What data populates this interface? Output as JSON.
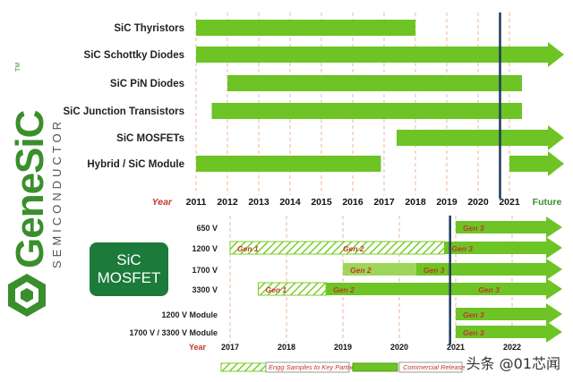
{
  "brand": {
    "name": "GeneSiC",
    "trademark": "TM",
    "tagline": "SEMICONDUCTOR"
  },
  "watermark": "头条 @01芯闻",
  "mosfet_box": {
    "line1": "SiC",
    "line2": "MOSFET"
  },
  "colors": {
    "bar": "#7ccc2a",
    "arrow": "#6dc424",
    "vline": "#1f3a5f",
    "year_red": "#c0392b",
    "grid": "#e8b89a"
  },
  "chart_data": [
    {
      "type": "gantt",
      "x_label": "Year",
      "x_ticks": [
        "2011",
        "2012",
        "2013",
        "2014",
        "2015",
        "2016",
        "2017",
        "2018",
        "2019",
        "2020",
        "2021",
        "Future"
      ],
      "marker_year": 2020.7,
      "series": [
        {
          "name": "SiC Thyristors",
          "start": 2011,
          "end": 2018,
          "arrow": false
        },
        {
          "name": "SiC Schottky Diodes",
          "start": 2011,
          "end": "Future",
          "arrow": true
        },
        {
          "name": "SiC PiN Diodes",
          "start": 2012,
          "end": 2021.4,
          "arrow": false
        },
        {
          "name": "SiC Junction Transistors",
          "start": 2011.5,
          "end": 2021.4,
          "arrow": false
        },
        {
          "name": "SiC MOSFETs",
          "start": 2017.4,
          "end": "Future",
          "arrow": true
        },
        {
          "name": "Hybrid / SiC Module",
          "start": 2011,
          "end": 2016.9,
          "arrow": false
        },
        {
          "name": "Hybrid / SiC Module",
          "start": 2021,
          "end": "Future",
          "arrow": true
        }
      ]
    },
    {
      "type": "gantt",
      "x_label": "Year",
      "x_ticks": [
        "2017",
        "2018",
        "2019",
        "2020",
        "2021",
        "2022"
      ],
      "marker_year": 2020.9,
      "legend": [
        {
          "label": "Engg Samples to Key Partners",
          "style": "hatched"
        },
        {
          "label": "Commercial Release",
          "style": "solid"
        }
      ],
      "rows": [
        {
          "name": "650 V",
          "segments": [
            {
              "start": 2021,
              "end": "Future",
              "style": "solid",
              "label": "Gen 3"
            }
          ]
        },
        {
          "name": "1200 V",
          "segments": [
            {
              "start": 2017,
              "end": 2020.8,
              "style": "hatched",
              "label": "Gen 1"
            },
            {
              "start": 2020.8,
              "end": "Future",
              "style": "solid",
              "label": "Gen 3"
            }
          ],
          "extra_labels": [
            "Gen 2"
          ]
        },
        {
          "name": "1700 V",
          "segments": [
            {
              "start": 2019,
              "end": 2020.3,
              "style": "light",
              "label": "Gen 2"
            },
            {
              "start": 2020.3,
              "end": "Future",
              "style": "solid",
              "label": "Gen 3"
            }
          ]
        },
        {
          "name": "3300 V",
          "segments": [
            {
              "start": 2017.5,
              "end": 2018.7,
              "style": "hatched",
              "label": "Gen 1"
            },
            {
              "start": 2018.7,
              "end": "Future",
              "style": "solid",
              "label": "Gen 2"
            }
          ],
          "extra_labels": [
            "Gen 3"
          ]
        },
        {
          "name": "1200 V Module",
          "segments": [
            {
              "start": 2021,
              "end": "Future",
              "style": "solid",
              "label": "Gen 3"
            }
          ]
        },
        {
          "name": "1700 V / 3300 V Module",
          "segments": [
            {
              "start": 2021,
              "end": "Future",
              "style": "solid",
              "label": "Gen 3"
            }
          ]
        }
      ]
    }
  ]
}
